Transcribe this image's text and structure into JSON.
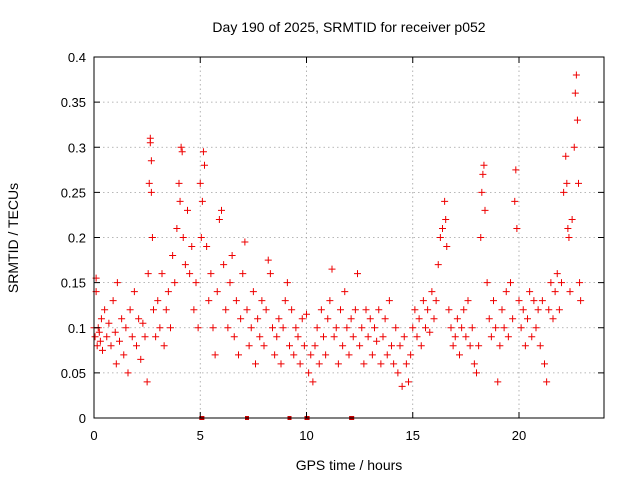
{
  "chart_data": {
    "type": "scatter",
    "title": "Day 190 of 2025, SRMTID for receiver p052",
    "xlabel": "GPS time / hours",
    "ylabel": "SRMTID / TECUs",
    "xlim": [
      0,
      24
    ],
    "ylim": [
      0,
      0.4
    ],
    "x_ticks": [
      "0",
      "5",
      "10",
      "15",
      "20"
    ],
    "x_tick_values": [
      0,
      5,
      10,
      15,
      20
    ],
    "y_ticks": [
      "0",
      "0.05",
      "0.1",
      "0.15",
      "0.2",
      "0.25",
      "0.3",
      "0.35",
      "0.4"
    ],
    "y_tick_values": [
      0,
      0.05,
      0.1,
      0.15,
      0.2,
      0.25,
      0.3,
      0.35,
      0.4
    ],
    "grid": true,
    "marker": "+",
    "color": "#ee0000",
    "series": [
      {
        "name": "SRMTID",
        "points": [
          [
            0.0,
            0.1
          ],
          [
            0.05,
            0.09
          ],
          [
            0.1,
            0.155
          ],
          [
            0.1,
            0.14
          ],
          [
            0.15,
            0.08
          ],
          [
            0.2,
            0.1
          ],
          [
            0.25,
            0.095
          ],
          [
            0.3,
            0.085
          ],
          [
            0.35,
            0.11
          ],
          [
            0.4,
            0.075
          ],
          [
            0.5,
            0.12
          ],
          [
            0.6,
            0.09
          ],
          [
            0.7,
            0.105
          ],
          [
            0.8,
            0.08
          ],
          [
            0.9,
            0.13
          ],
          [
            1.0,
            0.095
          ],
          [
            1.05,
            0.06
          ],
          [
            1.1,
            0.15
          ],
          [
            1.2,
            0.085
          ],
          [
            1.3,
            0.11
          ],
          [
            1.4,
            0.07
          ],
          [
            1.5,
            0.1
          ],
          [
            1.6,
            0.05
          ],
          [
            1.7,
            0.12
          ],
          [
            1.8,
            0.09
          ],
          [
            1.9,
            0.14
          ],
          [
            2.0,
            0.08
          ],
          [
            2.1,
            0.11
          ],
          [
            2.2,
            0.065
          ],
          [
            2.3,
            0.105
          ],
          [
            2.4,
            0.09
          ],
          [
            2.5,
            0.04
          ],
          [
            2.55,
            0.16
          ],
          [
            2.6,
            0.26
          ],
          [
            2.65,
            0.31
          ],
          [
            2.65,
            0.305
          ],
          [
            2.7,
            0.285
          ],
          [
            2.7,
            0.25
          ],
          [
            2.75,
            0.2
          ],
          [
            2.8,
            0.12
          ],
          [
            2.9,
            0.09
          ],
          [
            3.0,
            0.13
          ],
          [
            3.1,
            0.1
          ],
          [
            3.2,
            0.16
          ],
          [
            3.3,
            0.08
          ],
          [
            3.4,
            0.12
          ],
          [
            3.5,
            0.14
          ],
          [
            3.6,
            0.1
          ],
          [
            3.7,
            0.18
          ],
          [
            3.8,
            0.15
          ],
          [
            3.9,
            0.21
          ],
          [
            4.0,
            0.26
          ],
          [
            4.05,
            0.24
          ],
          [
            4.1,
            0.3
          ],
          [
            4.15,
            0.295
          ],
          [
            4.2,
            0.2
          ],
          [
            4.3,
            0.17
          ],
          [
            4.4,
            0.23
          ],
          [
            4.5,
            0.16
          ],
          [
            4.6,
            0.19
          ],
          [
            4.7,
            0.12
          ],
          [
            4.8,
            0.15
          ],
          [
            4.9,
            0.1
          ],
          [
            5.0,
            0.26
          ],
          [
            5.05,
            0.2
          ],
          [
            5.1,
            0.24
          ],
          [
            5.15,
            0.295
          ],
          [
            5.2,
            0.28
          ],
          [
            5.3,
            0.19
          ],
          [
            5.4,
            0.13
          ],
          [
            5.5,
            0.16
          ],
          [
            5.6,
            0.1
          ],
          [
            5.7,
            0.07
          ],
          [
            5.8,
            0.14
          ],
          [
            5.9,
            0.22
          ],
          [
            6.0,
            0.23
          ],
          [
            6.1,
            0.17
          ],
          [
            6.2,
            0.12
          ],
          [
            6.3,
            0.1
          ],
          [
            6.4,
            0.15
          ],
          [
            6.5,
            0.18
          ],
          [
            6.6,
            0.09
          ],
          [
            6.7,
            0.13
          ],
          [
            6.8,
            0.07
          ],
          [
            6.9,
            0.11
          ],
          [
            7.0,
            0.16
          ],
          [
            7.1,
            0.195
          ],
          [
            7.2,
            0.12
          ],
          [
            7.3,
            0.08
          ],
          [
            7.4,
            0.1
          ],
          [
            7.5,
            0.14
          ],
          [
            7.6,
            0.06
          ],
          [
            7.7,
            0.11
          ],
          [
            7.8,
            0.09
          ],
          [
            7.9,
            0.13
          ],
          [
            8.0,
            0.08
          ],
          [
            8.1,
            0.12
          ],
          [
            8.2,
            0.175
          ],
          [
            8.3,
            0.16
          ],
          [
            8.4,
            0.1
          ],
          [
            8.5,
            0.07
          ],
          [
            8.6,
            0.09
          ],
          [
            8.7,
            0.11
          ],
          [
            8.8,
            0.06
          ],
          [
            8.9,
            0.1
          ],
          [
            9.0,
            0.13
          ],
          [
            9.1,
            0.15
          ],
          [
            9.2,
            0.08
          ],
          [
            9.3,
            0.12
          ],
          [
            9.4,
            0.07
          ],
          [
            9.5,
            0.1
          ],
          [
            9.6,
            0.09
          ],
          [
            9.7,
            0.06
          ],
          [
            9.8,
            0.11
          ],
          [
            9.9,
            0.08
          ],
          [
            10.0,
            0.115
          ],
          [
            10.1,
            0.05
          ],
          [
            10.2,
            0.07
          ],
          [
            10.3,
            0.04
          ],
          [
            10.4,
            0.08
          ],
          [
            10.5,
            0.1
          ],
          [
            10.6,
            0.06
          ],
          [
            10.7,
            0.12
          ],
          [
            10.8,
            0.09
          ],
          [
            10.9,
            0.07
          ],
          [
            11.0,
            0.11
          ],
          [
            11.1,
            0.13
          ],
          [
            11.2,
            0.165
          ],
          [
            11.3,
            0.09
          ],
          [
            11.4,
            0.1
          ],
          [
            11.5,
            0.06
          ],
          [
            11.6,
            0.12
          ],
          [
            11.7,
            0.08
          ],
          [
            11.8,
            0.14
          ],
          [
            11.9,
            0.1
          ],
          [
            12.0,
            0.07
          ],
          [
            12.1,
            0.11
          ],
          [
            12.2,
            0.09
          ],
          [
            12.3,
            0.12
          ],
          [
            12.4,
            0.16
          ],
          [
            12.5,
            0.08
          ],
          [
            12.6,
            0.1
          ],
          [
            12.7,
            0.06
          ],
          [
            12.8,
            0.12
          ],
          [
            12.9,
            0.09
          ],
          [
            13.0,
            0.11
          ],
          [
            13.1,
            0.07
          ],
          [
            13.2,
            0.1
          ],
          [
            13.3,
            0.085
          ],
          [
            13.4,
            0.12
          ],
          [
            13.5,
            0.06
          ],
          [
            13.6,
            0.09
          ],
          [
            13.7,
            0.11
          ],
          [
            13.8,
            0.07
          ],
          [
            13.9,
            0.13
          ],
          [
            14.0,
            0.08
          ],
          [
            14.1,
            0.06
          ],
          [
            14.2,
            0.1
          ],
          [
            14.3,
            0.05
          ],
          [
            14.4,
            0.08
          ],
          [
            14.5,
            0.035
          ],
          [
            14.6,
            0.09
          ],
          [
            14.7,
            0.06
          ],
          [
            14.8,
            0.04
          ],
          [
            14.9,
            0.07
          ],
          [
            15.0,
            0.1
          ],
          [
            15.1,
            0.12
          ],
          [
            15.2,
            0.09
          ],
          [
            15.3,
            0.11
          ],
          [
            15.4,
            0.08
          ],
          [
            15.5,
            0.13
          ],
          [
            15.6,
            0.1
          ],
          [
            15.7,
            0.12
          ],
          [
            15.8,
            0.095
          ],
          [
            15.9,
            0.14
          ],
          [
            16.0,
            0.11
          ],
          [
            16.1,
            0.13
          ],
          [
            16.2,
            0.17
          ],
          [
            16.3,
            0.2
          ],
          [
            16.4,
            0.21
          ],
          [
            16.5,
            0.24
          ],
          [
            16.55,
            0.22
          ],
          [
            16.6,
            0.19
          ],
          [
            16.7,
            0.12
          ],
          [
            16.8,
            0.1
          ],
          [
            16.9,
            0.08
          ],
          [
            17.0,
            0.09
          ],
          [
            17.1,
            0.11
          ],
          [
            17.2,
            0.07
          ],
          [
            17.3,
            0.1
          ],
          [
            17.4,
            0.12
          ],
          [
            17.5,
            0.09
          ],
          [
            17.6,
            0.13
          ],
          [
            17.7,
            0.08
          ],
          [
            17.8,
            0.1
          ],
          [
            17.9,
            0.06
          ],
          [
            18.0,
            0.05
          ],
          [
            18.1,
            0.08
          ],
          [
            18.2,
            0.2
          ],
          [
            18.25,
            0.25
          ],
          [
            18.3,
            0.27
          ],
          [
            18.35,
            0.28
          ],
          [
            18.4,
            0.23
          ],
          [
            18.5,
            0.15
          ],
          [
            18.6,
            0.11
          ],
          [
            18.7,
            0.09
          ],
          [
            18.8,
            0.13
          ],
          [
            18.9,
            0.1
          ],
          [
            19.0,
            0.04
          ],
          [
            19.1,
            0.08
          ],
          [
            19.2,
            0.12
          ],
          [
            19.3,
            0.1
          ],
          [
            19.4,
            0.14
          ],
          [
            19.5,
            0.09
          ],
          [
            19.6,
            0.15
          ],
          [
            19.7,
            0.11
          ],
          [
            19.8,
            0.24
          ],
          [
            19.85,
            0.275
          ],
          [
            19.9,
            0.21
          ],
          [
            20.0,
            0.13
          ],
          [
            20.1,
            0.1
          ],
          [
            20.2,
            0.12
          ],
          [
            20.3,
            0.08
          ],
          [
            20.4,
            0.11
          ],
          [
            20.5,
            0.14
          ],
          [
            20.6,
            0.09
          ],
          [
            20.7,
            0.13
          ],
          [
            20.8,
            0.1
          ],
          [
            20.9,
            0.12
          ],
          [
            21.0,
            0.08
          ],
          [
            21.1,
            0.13
          ],
          [
            21.2,
            0.06
          ],
          [
            21.3,
            0.04
          ],
          [
            21.4,
            0.12
          ],
          [
            21.5,
            0.15
          ],
          [
            21.6,
            0.11
          ],
          [
            21.7,
            0.14
          ],
          [
            21.8,
            0.16
          ],
          [
            21.9,
            0.12
          ],
          [
            22.0,
            0.15
          ],
          [
            22.1,
            0.25
          ],
          [
            22.2,
            0.29
          ],
          [
            22.25,
            0.26
          ],
          [
            22.3,
            0.21
          ],
          [
            22.35,
            0.2
          ],
          [
            22.4,
            0.14
          ],
          [
            22.5,
            0.22
          ],
          [
            22.6,
            0.3
          ],
          [
            22.65,
            0.36
          ],
          [
            22.7,
            0.38
          ],
          [
            22.75,
            0.33
          ],
          [
            22.8,
            0.26
          ],
          [
            22.85,
            0.15
          ],
          [
            22.9,
            0.13
          ]
        ]
      }
    ],
    "zero_markers_x": [
      5.05,
      5.1,
      7.2,
      9.2,
      10.0,
      10.05,
      12.1,
      12.15
    ]
  }
}
